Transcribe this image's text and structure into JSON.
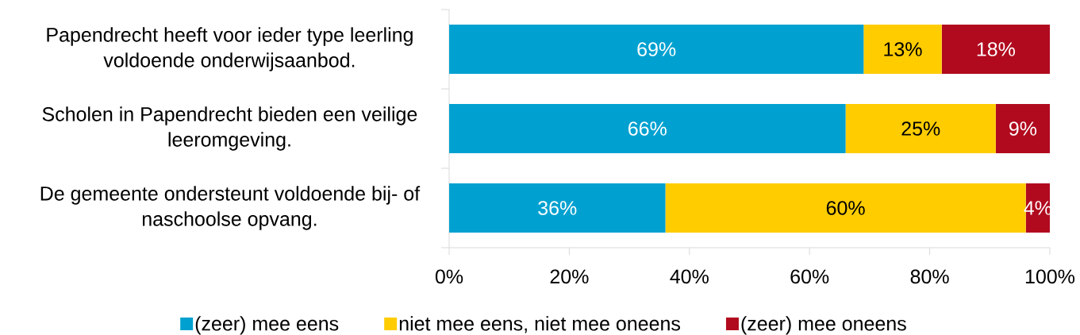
{
  "chart_data": {
    "type": "bar",
    "orientation": "horizontal",
    "stacked": true,
    "categories": [
      "Papendrecht heeft voor ieder type leerling voldoende onderwijsaanbod.",
      "Scholen in Papendrecht bieden een veilige leeromgeving.",
      "De gemeente ondersteunt voldoende bij- of naschoolse opvang."
    ],
    "series": [
      {
        "name": "(zeer) mee eens",
        "color": "#00A1D0",
        "values": [
          69,
          66,
          36
        ],
        "value_labels": [
          "69%",
          "66%",
          "36%"
        ]
      },
      {
        "name": "niet mee eens, niet mee oneens",
        "color": "#FFCC00",
        "values": [
          13,
          25,
          60
        ],
        "value_labels": [
          "13%",
          "25%",
          "60%"
        ]
      },
      {
        "name": "(zeer) mee oneens",
        "color": "#B10A1E",
        "values": [
          18,
          9,
          4
        ],
        "value_labels": [
          "18%",
          "9%",
          "4%"
        ]
      }
    ],
    "xlim": [
      0,
      100
    ],
    "xticks": [
      {
        "value": 0,
        "label": "0%"
      },
      {
        "value": 20,
        "label": "20%"
      },
      {
        "value": 40,
        "label": "40%"
      },
      {
        "value": 60,
        "label": "60%"
      },
      {
        "value": 80,
        "label": "80%"
      },
      {
        "value": 100,
        "label": "100%"
      }
    ],
    "legend": "bottom"
  }
}
